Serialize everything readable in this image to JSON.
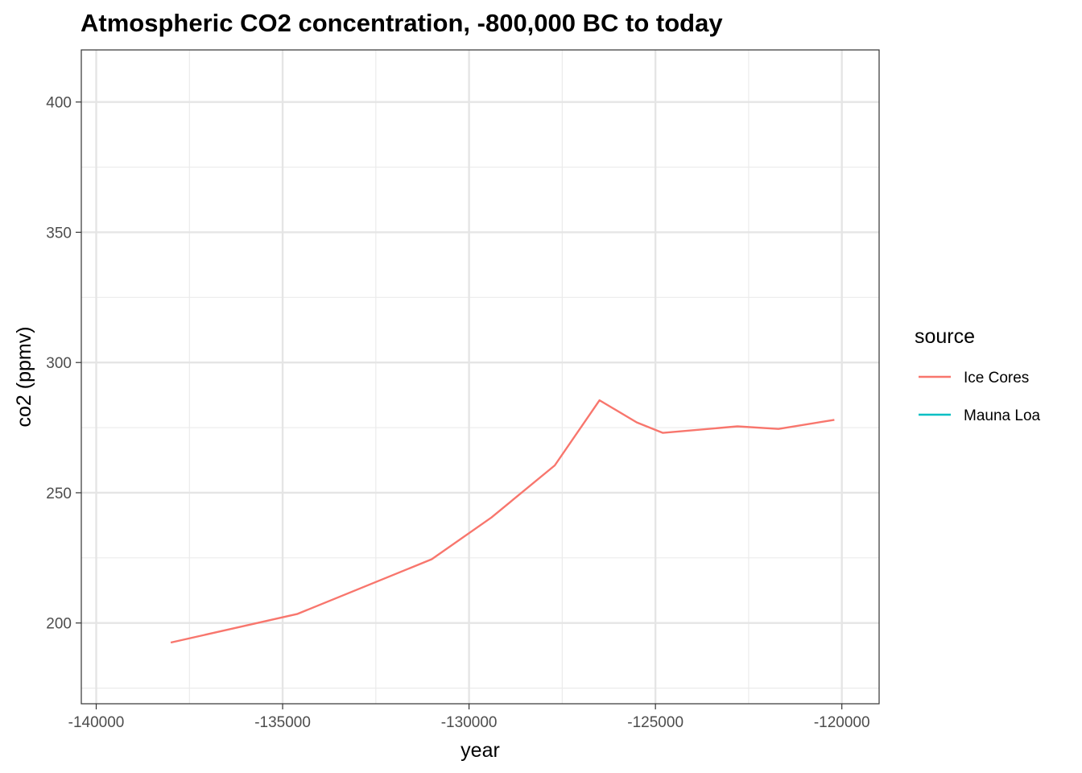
{
  "chart_data": {
    "type": "line",
    "title": "Atmospheric CO2 concentration, -800,000 BC to today",
    "xlabel": "year",
    "ylabel": "co2 (ppmv)",
    "xlim": [
      -140400,
      -119000
    ],
    "ylim": [
      169,
      420
    ],
    "x_ticks": [
      -140000,
      -135000,
      -130000,
      -125000,
      -120000
    ],
    "x_tick_labels": [
      "-140000",
      "-135000",
      "-130000",
      "-125000",
      "-120000"
    ],
    "y_ticks": [
      200,
      250,
      300,
      350,
      400
    ],
    "y_tick_labels": [
      "200",
      "250",
      "300",
      "350",
      "400"
    ],
    "grid": true,
    "legend": {
      "title": "source",
      "position": "right",
      "entries": [
        {
          "label": "Ice Cores",
          "color": "#F8766D"
        },
        {
          "label": "Mauna Loa",
          "color": "#00BFC4"
        }
      ]
    },
    "series": [
      {
        "name": "Ice Cores",
        "color": "#F8766D",
        "x": [
          -138000,
          -134600,
          -131000,
          -129400,
          -127700,
          -126500,
          -125500,
          -124800,
          -122800,
          -121700,
          -120200
        ],
        "y": [
          192.5,
          203.5,
          224.5,
          240.5,
          260.5,
          285.5,
          277,
          273,
          275.5,
          274.5,
          278
        ]
      },
      {
        "name": "Mauna Loa",
        "color": "#00BFC4",
        "x": [],
        "y": []
      }
    ]
  }
}
